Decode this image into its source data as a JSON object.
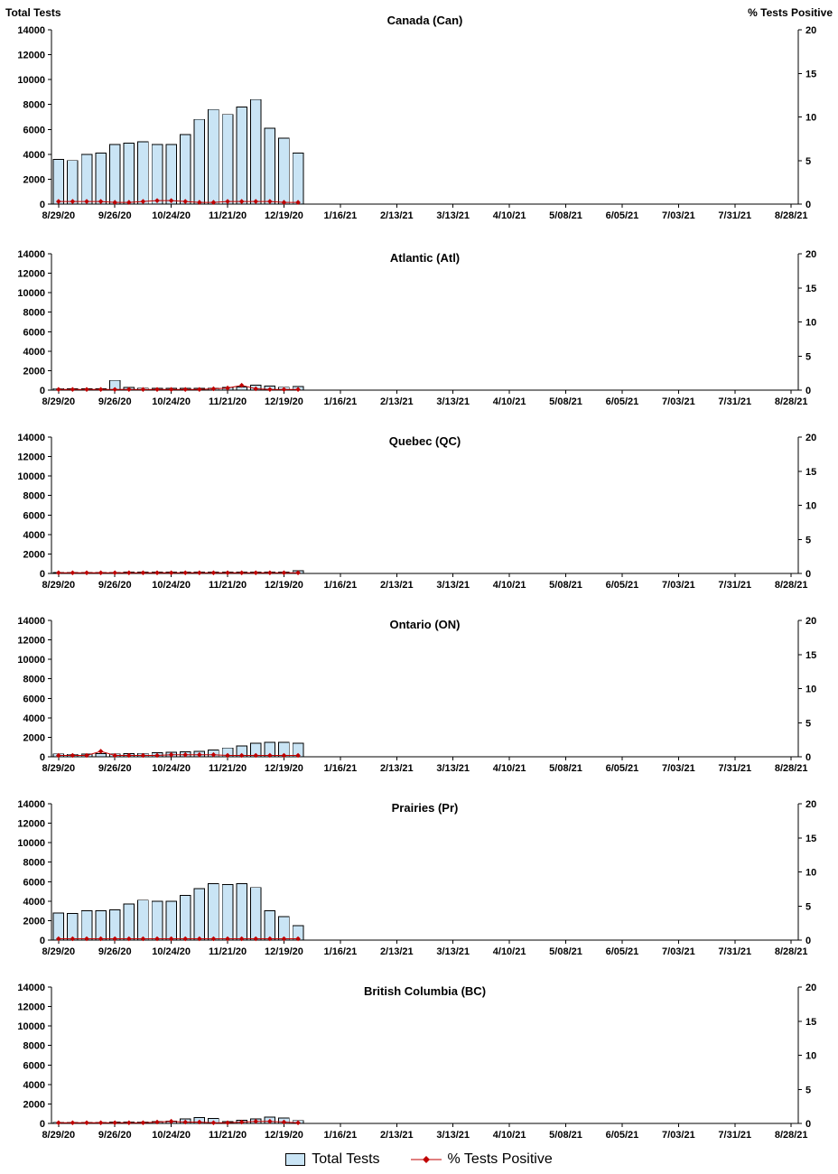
{
  "axis_titles": {
    "left": "Total Tests",
    "right": "% Tests Positive"
  },
  "legend": {
    "total_tests": "Total Tests",
    "pct_positive": "% Tests Positive"
  },
  "colors": {
    "bar_fill": "#C9E4F5",
    "bar_stroke": "#000000",
    "line": "#C00000",
    "axis": "#000000",
    "background": "#FFFFFF"
  },
  "chart_config": {
    "weeks_total": 53,
    "x_tick_interval_weeks": 4,
    "x_tick_labels": [
      "8/29/20",
      "9/26/20",
      "10/24/20",
      "11/21/20",
      "12/19/20",
      "1/16/21",
      "2/13/21",
      "3/13/21",
      "4/10/21",
      "5/08/21",
      "6/05/21",
      "7/03/21",
      "7/31/21",
      "8/28/21"
    ],
    "y_left": {
      "label": "Total Tests",
      "min": 0,
      "max": 14000,
      "tick_step": 2000
    },
    "y_right": {
      "label": "% Tests Positive",
      "min": 0,
      "max": 20,
      "tick_step": 5
    },
    "grid": false,
    "legend_position": "bottom"
  },
  "chart_data": [
    {
      "type": "bar",
      "title": "Canada (Can)",
      "x_start": "8/29/20",
      "x_step": "week",
      "series": [
        {
          "name": "Total Tests",
          "type": "bar",
          "axis": "left",
          "values": [
            3600,
            3500,
            4000,
            4100,
            4800,
            4900,
            5000,
            4800,
            4800,
            5600,
            6800,
            7600,
            7200,
            7800,
            8400,
            6100,
            5300,
            4100
          ]
        },
        {
          "name": "% Tests Positive",
          "type": "line",
          "axis": "right",
          "values": [
            0.3,
            0.3,
            0.3,
            0.3,
            0.2,
            0.2,
            0.3,
            0.4,
            0.4,
            0.3,
            0.2,
            0.2,
            0.3,
            0.3,
            0.3,
            0.3,
            0.2,
            0.2
          ]
        }
      ]
    },
    {
      "type": "bar",
      "title": "Atlantic (Atl)",
      "x_start": "8/29/20",
      "x_step": "week",
      "series": [
        {
          "name": "Total Tests",
          "type": "bar",
          "axis": "left",
          "values": [
            160,
            150,
            140,
            150,
            1000,
            260,
            210,
            200,
            190,
            180,
            190,
            210,
            260,
            320,
            500,
            400,
            300,
            360
          ]
        },
        {
          "name": "% Tests Positive",
          "type": "line",
          "axis": "right",
          "values": [
            0.1,
            0.1,
            0.1,
            0.1,
            0.1,
            0.1,
            0.1,
            0.1,
            0.1,
            0.1,
            0.1,
            0.2,
            0.3,
            0.7,
            0.2,
            0.1,
            0.1,
            0.1
          ]
        }
      ]
    },
    {
      "type": "bar",
      "title": "Quebec (QC)",
      "x_start": "8/29/20",
      "x_step": "week",
      "series": [
        {
          "name": "Total Tests",
          "type": "bar",
          "axis": "left",
          "values": [
            80,
            90,
            100,
            100,
            120,
            130,
            140,
            130,
            140,
            150,
            150,
            150,
            150,
            140,
            150,
            150,
            130,
            280
          ]
        },
        {
          "name": "% Tests Positive",
          "type": "line",
          "axis": "right",
          "values": [
            0.1,
            0.1,
            0.1,
            0.1,
            0.1,
            0.1,
            0.1,
            0.1,
            0.1,
            0.1,
            0.1,
            0.1,
            0.1,
            0.1,
            0.1,
            0.1,
            0.1,
            0.1
          ]
        }
      ]
    },
    {
      "type": "bar",
      "title": "Ontario (ON)",
      "x_start": "8/29/20",
      "x_step": "week",
      "series": [
        {
          "name": "Total Tests",
          "type": "bar",
          "axis": "left",
          "values": [
            300,
            260,
            280,
            320,
            300,
            310,
            350,
            400,
            460,
            500,
            560,
            700,
            900,
            1100,
            1400,
            1500,
            1500,
            1400
          ]
        },
        {
          "name": "% Tests Positive",
          "type": "line",
          "axis": "right",
          "values": [
            0.2,
            0.2,
            0.2,
            0.8,
            0.2,
            0.2,
            0.2,
            0.2,
            0.3,
            0.3,
            0.3,
            0.3,
            0.2,
            0.2,
            0.2,
            0.2,
            0.2,
            0.2
          ]
        }
      ]
    },
    {
      "type": "bar",
      "title": "Prairies (Pr)",
      "x_start": "8/29/20",
      "x_step": "week",
      "series": [
        {
          "name": "Total Tests",
          "type": "bar",
          "axis": "left",
          "values": [
            2800,
            2750,
            3000,
            3000,
            3100,
            3700,
            4100,
            4000,
            4000,
            4600,
            5300,
            5800,
            5700,
            5800,
            5400,
            3000,
            2400,
            1500
          ]
        },
        {
          "name": "% Tests Positive",
          "type": "line",
          "axis": "right",
          "values": [
            0.2,
            0.2,
            0.2,
            0.2,
            0.2,
            0.2,
            0.2,
            0.2,
            0.2,
            0.2,
            0.2,
            0.2,
            0.2,
            0.2,
            0.2,
            0.2,
            0.2,
            0.2
          ]
        }
      ]
    },
    {
      "type": "bar",
      "title": "British Columbia (BC)",
      "x_start": "8/29/20",
      "x_step": "week",
      "series": [
        {
          "name": "Total Tests",
          "type": "bar",
          "axis": "left",
          "values": [
            120,
            110,
            100,
            110,
            130,
            150,
            160,
            180,
            260,
            450,
            600,
            500,
            200,
            320,
            450,
            650,
            550,
            300
          ]
        },
        {
          "name": "% Tests Positive",
          "type": "line",
          "axis": "right",
          "values": [
            0.1,
            0.1,
            0.1,
            0.1,
            0.1,
            0.1,
            0.1,
            0.2,
            0.3,
            0.2,
            0.2,
            0.1,
            0.1,
            0.2,
            0.3,
            0.3,
            0.2,
            0.1
          ]
        }
      ]
    }
  ]
}
